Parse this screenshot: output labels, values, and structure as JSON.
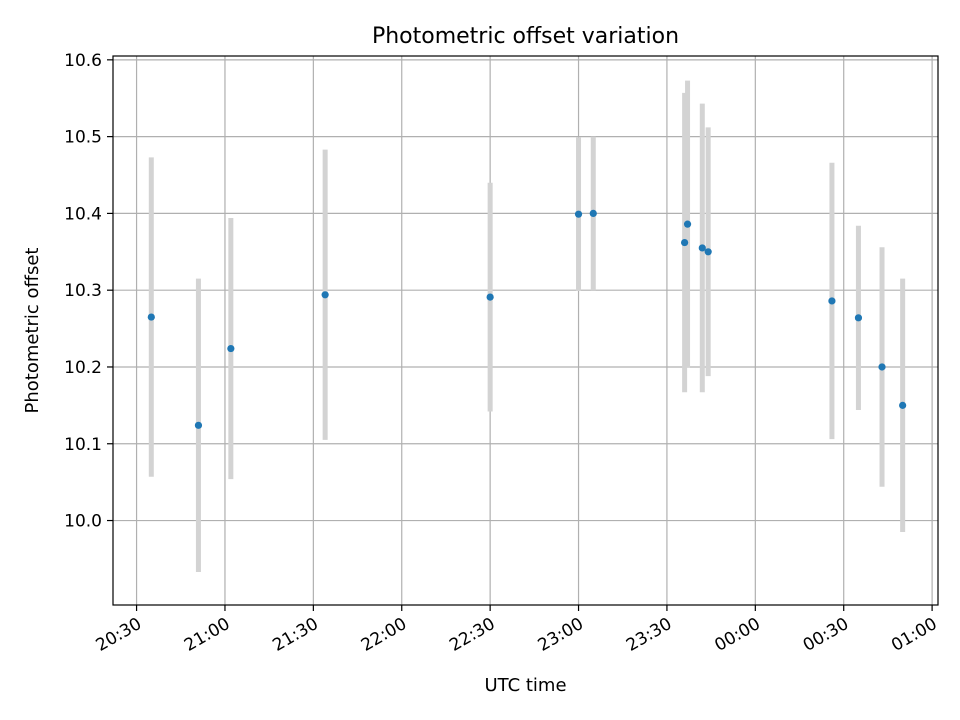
{
  "chart_data": {
    "type": "scatter",
    "title": "Photometric offset variation",
    "xlabel": "UTC time",
    "ylabel": "Photometric offset",
    "grid": true,
    "xlim": [
      "20:22",
      "01:02"
    ],
    "ylim": [
      9.89,
      10.605
    ],
    "x_ticks": [
      "20:30",
      "21:00",
      "21:30",
      "22:00",
      "22:30",
      "23:00",
      "23:30",
      "00:00",
      "00:30",
      "01:00"
    ],
    "y_ticks": [
      "10.0",
      "10.1",
      "10.2",
      "10.3",
      "10.4",
      "10.5",
      "10.6"
    ],
    "errorbar_color": "#d3d3d3",
    "point_color": "#1f77b4",
    "points": [
      {
        "x": "20:35",
        "y": 10.265,
        "yerr": 0.208
      },
      {
        "x": "20:51",
        "y": 10.124,
        "yerr": 0.191
      },
      {
        "x": "21:02",
        "y": 10.224,
        "yerr": 0.17
      },
      {
        "x": "21:34",
        "y": 10.294,
        "yerr": 0.189
      },
      {
        "x": "22:30",
        "y": 10.291,
        "yerr": 0.149
      },
      {
        "x": "23:00",
        "y": 10.399,
        "yerr": 0.1
      },
      {
        "x": "23:05",
        "y": 10.4,
        "yerr": 0.1
      },
      {
        "x": "23:36",
        "y": 10.362,
        "yerr": 0.195
      },
      {
        "x": "23:37",
        "y": 10.386,
        "yerr": 0.187
      },
      {
        "x": "23:42",
        "y": 10.355,
        "yerr": 0.188
      },
      {
        "x": "23:44",
        "y": 10.35,
        "yerr": 0.162
      },
      {
        "x": "00:26",
        "y": 10.286,
        "yerr": 0.18
      },
      {
        "x": "00:35",
        "y": 10.264,
        "yerr": 0.12
      },
      {
        "x": "00:43",
        "y": 10.2,
        "yerr": 0.156
      },
      {
        "x": "00:50",
        "y": 10.15,
        "yerr": 0.165
      }
    ]
  }
}
